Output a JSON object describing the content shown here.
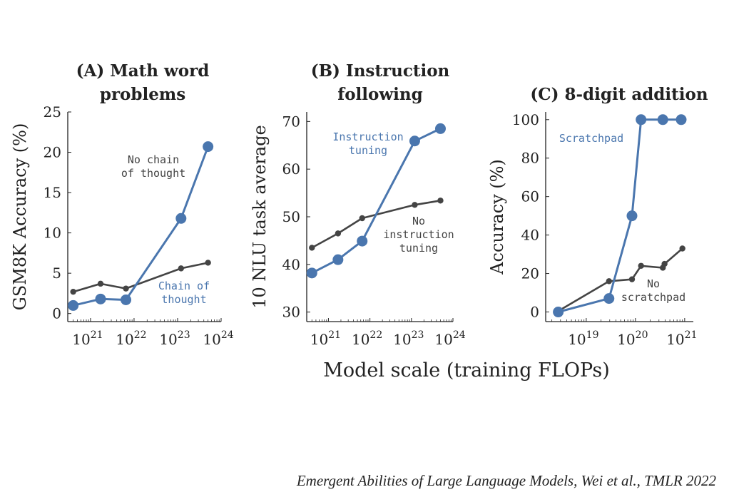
{
  "figure": {
    "xlabel": "Model scale (training FLOPs)",
    "caption": "Emergent Abilities of Large Language Models, Wei et al., TMLR 2022",
    "colors": {
      "highlight": "#4a76ae",
      "baseline": "#444444",
      "axis": "#222222"
    }
  },
  "chart_data": [
    {
      "type": "line",
      "title": [
        "(A) Math word",
        "problems"
      ],
      "ylabel": "GSM8K Accuracy (%)",
      "x_scale": "log",
      "xlim": [
        3e+20,
        1e+24
      ],
      "ylim": [
        -1,
        25
      ],
      "yticks": [
        0,
        5,
        10,
        15,
        20,
        25
      ],
      "xticks": [
        {
          "value": 1e+21,
          "label": "10",
          "exp": "21"
        },
        {
          "value": 1e+22,
          "label": "10",
          "exp": "22"
        },
        {
          "value": 1e+23,
          "label": "10",
          "exp": "23"
        },
        {
          "value": 1e+24,
          "label": "10",
          "exp": "24"
        }
      ],
      "series": [
        {
          "name": "No chain of thought",
          "label_lines": [
            "No chain",
            "of thought"
          ],
          "style": "baseline",
          "x": [
            4e+20,
            1.7e+21,
            6.5e+21,
            1.2e+23,
            5e+23
          ],
          "y": [
            2.7,
            3.7,
            3.1,
            5.6,
            6.3
          ]
        },
        {
          "name": "Chain of thought",
          "label_lines": [
            "Chain of",
            "thought"
          ],
          "style": "highlight",
          "x": [
            4e+20,
            1.7e+21,
            6.5e+21,
            1.2e+23,
            5e+23
          ],
          "y": [
            1.0,
            1.8,
            1.7,
            11.8,
            20.7
          ]
        }
      ]
    },
    {
      "type": "line",
      "title": [
        "(B) Instruction",
        "following"
      ],
      "ylabel": "10 NLU task average",
      "x_scale": "log",
      "xlim": [
        3e+20,
        1e+24
      ],
      "ylim": [
        28,
        72
      ],
      "yticks": [
        30,
        40,
        50,
        60,
        70
      ],
      "xticks": [
        {
          "value": 1e+21,
          "label": "10",
          "exp": "21"
        },
        {
          "value": 1e+22,
          "label": "10",
          "exp": "22"
        },
        {
          "value": 1e+23,
          "label": "10",
          "exp": "23"
        },
        {
          "value": 1e+24,
          "label": "10",
          "exp": "24"
        }
      ],
      "series": [
        {
          "name": "No instruction tuning",
          "label_lines": [
            "No",
            "instruction",
            "tuning"
          ],
          "style": "baseline",
          "x": [
            4e+20,
            1.7e+21,
            6.5e+21,
            1.2e+23,
            5e+23
          ],
          "y": [
            43.5,
            46.5,
            49.7,
            52.5,
            53.4
          ]
        },
        {
          "name": "Instruction tuning",
          "label_lines": [
            "Instruction",
            "tuning"
          ],
          "style": "highlight",
          "x": [
            4e+20,
            1.7e+21,
            6.5e+21,
            1.2e+23,
            5e+23
          ],
          "y": [
            38.2,
            41.0,
            44.9,
            65.9,
            68.5
          ]
        }
      ]
    },
    {
      "type": "line",
      "title": [
        "(C) 8-digit addition"
      ],
      "ylabel": "Accuracy (%)",
      "x_scale": "log",
      "xlim": [
        1.5e+18,
        1.5e+21
      ],
      "ylim": [
        -5,
        104
      ],
      "yticks": [
        0,
        20,
        40,
        60,
        80,
        100
      ],
      "xticks": [
        {
          "value": 1e+19,
          "label": "10",
          "exp": "19"
        },
        {
          "value": 1e+20,
          "label": "10",
          "exp": "20"
        },
        {
          "value": 1e+21,
          "label": "10",
          "exp": "21"
        }
      ],
      "series": [
        {
          "name": "No scratchpad",
          "label_lines": [
            "No",
            "scratchpad"
          ],
          "style": "baseline",
          "x": [
            2.7e+18,
            2.9e+19,
            8.5e+19,
            1.3e+20,
            3.6e+20,
            3.9e+20,
            9e+20
          ],
          "y": [
            0.5,
            16,
            17,
            24,
            23,
            25,
            33
          ]
        },
        {
          "name": "Scratchpad",
          "label_lines": [
            "Scratchpad"
          ],
          "style": "highlight",
          "x": [
            2.7e+18,
            2.9e+19,
            8.5e+19,
            1.3e+20,
            3.6e+20,
            8.5e+20
          ],
          "y": [
            0,
            7,
            50,
            100,
            100,
            100
          ]
        }
      ]
    }
  ]
}
